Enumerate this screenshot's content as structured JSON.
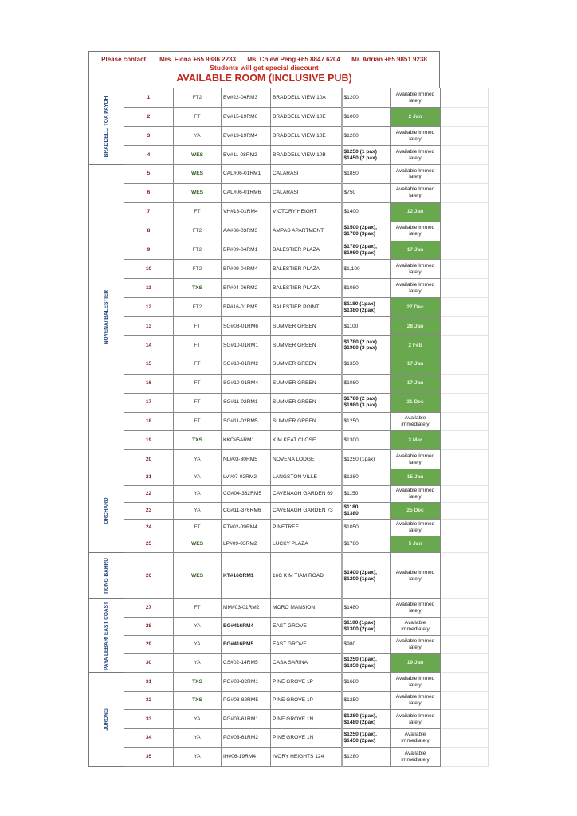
{
  "header": {
    "contact_label": "Please contact:",
    "contacts": [
      "Mrs. Fiona +65 9386 2233",
      "Ms. Chiew Peng +65 8847 6204",
      "Mr. Adrian +65 9851 9238"
    ],
    "discount": "Students will get special discount",
    "title": "AVAILABLE ROOM (INCLUSIVE PUB)"
  },
  "colors": {
    "available_date_bg": "#6aa84f",
    "number": "#8b1a1a",
    "region": "#1f3f7f",
    "title": "#c0281e"
  },
  "groups": [
    {
      "region": "BRADDELL/ TOA PAYOH",
      "rows": [
        {
          "no": "1",
          "type": "FT2",
          "code": "BV#22-04RM3",
          "name": "BRADDELL VIEW 10A",
          "price": "$1200",
          "avail": "Available Immed iately",
          "date": false
        },
        {
          "no": "2",
          "type": "FT",
          "code": "BV#15-19RM6",
          "name": "BRADDELL VIEW 10E",
          "price": "$1000",
          "avail": "2 Jan",
          "date": true
        },
        {
          "no": "3",
          "type": "YA",
          "code": "BV#13-19RM4",
          "name": "BRADDELL VIEW 10E",
          "price": "$1200",
          "avail": "Available Immed iately",
          "date": false
        },
        {
          "no": "4",
          "type": "WES",
          "code": "BV#11-08RM2",
          "name": "BRADDELL VIEW 10B",
          "price": "$1250 (1 pax)\n$1450 (2 pax)",
          "avail": "Available Immed iately",
          "date": false
        }
      ]
    },
    {
      "region": "NOVENA/ BALESTIER",
      "rows": [
        {
          "no": "5",
          "type": "WES",
          "code": "CAL#06-01RM1",
          "name": "CALARASI",
          "price": "$1850",
          "avail": "Available Immed iately",
          "date": false
        },
        {
          "no": "6",
          "type": "WES",
          "code": "CAL#06-01RM6",
          "name": "CALARASI",
          "price": "$750",
          "avail": "Available Immed iately",
          "date": false
        },
        {
          "no": "7",
          "type": "FT",
          "code": "VH#13-01RM4",
          "name": "VICTORY HEIGHT",
          "price": "$1400",
          "avail": "12 Jan",
          "date": true
        },
        {
          "no": "8",
          "type": "FT2",
          "code": "AA#08-03RM3",
          "name": "AMPAS APARTMENT",
          "price": "$1500 (2pax),\n$1700 (3pax)",
          "avail": "Available Immed iately",
          "date": false
        },
        {
          "no": "9",
          "type": "FT2",
          "code": "BP#09-04RM1",
          "name": "BALESTIER PLAZA",
          "price": "$1780 (2pax),\n$1980 (3pax)",
          "avail": "17 Jan",
          "date": true
        },
        {
          "no": "10",
          "type": "FT2",
          "code": "BP#09-04RM4",
          "name": "BALESTIER PLAZA",
          "price": "$1,100",
          "avail": "Available Immed iately",
          "date": false
        },
        {
          "no": "11",
          "type": "TXS",
          "code": "BP#04-06RM2",
          "name": "BALESTIER PLAZA",
          "price": "$1080",
          "avail": "Available Immed iately",
          "date": false
        },
        {
          "no": "12",
          "type": "FT2",
          "code": "BP#16-01RM5",
          "name": "BALESTIER POINT",
          "price": "$1180 (1pax)\n$1380 (2pax)",
          "avail": "27 Dec",
          "date": true
        },
        {
          "no": "13",
          "type": "FT",
          "code": "SG#08-01RM6",
          "name": "SUMMER GREEN",
          "price": "$1100",
          "avail": "28 Jan",
          "date": true
        },
        {
          "no": "14",
          "type": "FT",
          "code": "SG#10-01RM1",
          "name": "SUMMER GREEN",
          "price": "$1780 (2 pax)\n$1980 (3 pax)",
          "avail": "2 Feb",
          "date": true
        },
        {
          "no": "15",
          "type": "FT",
          "code": "SG#10-01RM2",
          "name": "SUMMER GREEN",
          "price": "$1350",
          "avail": "17 Jan",
          "date": true
        },
        {
          "no": "16",
          "type": "FT",
          "code": "SG#10-01RM4",
          "name": "SUMMER GREEN",
          "price": "$1080",
          "avail": "17 Jan",
          "date": true
        },
        {
          "no": "17",
          "type": "FT",
          "code": "SG#11-02RM1",
          "name": "SUMMER GREEN",
          "price": "$1780 (2 pax)\n$1980 (3 pax)",
          "avail": "31 Dec",
          "date": true
        },
        {
          "no": "18",
          "type": "FT",
          "code": "SG#11-02RM5",
          "name": "SUMMER GREEN",
          "price": "$1250",
          "avail": "Available immediately",
          "date": false
        },
        {
          "no": "19",
          "type": "TXS",
          "code": "KKC#5ARM1",
          "name": "KIM KEAT CLOSE",
          "price": "$1300",
          "avail": "3 Mar",
          "date": true
        },
        {
          "no": "20",
          "type": "YA",
          "code": "NL#03-30RM5",
          "name": "NOVENA LODGE",
          "price": "$1250 (1pax)",
          "avail": "Available Immed iately",
          "date": false
        }
      ]
    },
    {
      "region": "ORCHARD",
      "rows": [
        {
          "no": "21",
          "type": "YA",
          "code": "LV#07-02RM2",
          "name": "LANGSTON VILLE",
          "price": "$1280",
          "avail": "15 Jan",
          "date": true
        },
        {
          "no": "22",
          "type": "YA",
          "code": "CG#04-362RM5",
          "name": "CAVENAGH GARDEN 69",
          "price": "$1150",
          "avail": "Available Immed iately",
          "date": false
        },
        {
          "no": "23",
          "type": "YA",
          "code": "CG#11-376RM6",
          "name": "CAVENAGH GARDEN 73",
          "price": "$1180\n$1380",
          "avail": "25 Dec",
          "date": true
        },
        {
          "no": "24",
          "type": "FT",
          "code": "PT#02-09RM4",
          "name": "PINETREE",
          "price": "$1050",
          "avail": "Available Immed iately",
          "date": false
        },
        {
          "no": "25",
          "type": "WES",
          "code": "LP#09-03RM2",
          "name": "LUCKY PLAZA",
          "price": "$1780",
          "avail": "5 Jan",
          "date": true
        }
      ]
    },
    {
      "region": "TIONG BAHRU",
      "rows": [
        {
          "no": "26",
          "type": "WES",
          "code": "KT#16CRM1",
          "name": "16C KIM TIAM ROAD",
          "price": "$1400 (2pax),\n$1200 (1pax)",
          "avail": "Available Immed iately",
          "date": false
        }
      ]
    },
    {
      "region": "PAYA LEBAR/ EAST COAST",
      "rows": [
        {
          "no": "27",
          "type": "FT",
          "code": "MM#03-01RM2",
          "name": "MORO MANSION",
          "price": "$1480",
          "avail": "Available Immed iately",
          "date": false
        },
        {
          "no": "28",
          "type": "YA",
          "code": "EG#416RM4",
          "name": "EAST GROVE",
          "price": "$1100 (1pax)\n$1300 (2pax)",
          "avail": "Available Immediately",
          "date": false
        },
        {
          "no": "29",
          "type": "YA",
          "code": "EG#416RM5",
          "name": "EAST GROVE",
          "price": "$980",
          "avail": "Available Immed iately",
          "date": false
        },
        {
          "no": "30",
          "type": "YA",
          "code": "CS#02-14RM5",
          "name": "CASA SARINA",
          "price": "$1250 (1pax),\n$1350 (2pax)",
          "avail": "19 Jan",
          "date": true
        }
      ]
    },
    {
      "region": "JURONG",
      "rows": [
        {
          "no": "31",
          "type": "TXS",
          "code": "PG#08-82RM1",
          "name": "PINE GROVE 1P",
          "price": "$1680",
          "avail": "Available Immed iately",
          "date": false
        },
        {
          "no": "32",
          "type": "TXS",
          "code": "PG#08-82RM5",
          "name": "PINE GROVE 1P",
          "price": "$1250",
          "avail": "Available Immed iately",
          "date": false
        },
        {
          "no": "33",
          "type": "YA",
          "code": "PG#03-61RM1",
          "name": "PINE GROVE 1N",
          "price": "$1280 (1pax),\n$1480 (2pax)",
          "avail": "Available Immed iately",
          "date": false
        },
        {
          "no": "34",
          "type": "YA",
          "code": "PG#03-61RM2",
          "name": "PINE GROVE 1N",
          "price": "$1250 (1pax),\n$1450 (2pax)",
          "avail": "Available Immediately",
          "date": false
        },
        {
          "no": "35",
          "type": "YA",
          "code": "IH#06-19RM4",
          "name": "IVORY HEIGHTS 124",
          "price": "$1280",
          "avail": "Available Immediately",
          "date": false
        }
      ]
    }
  ]
}
